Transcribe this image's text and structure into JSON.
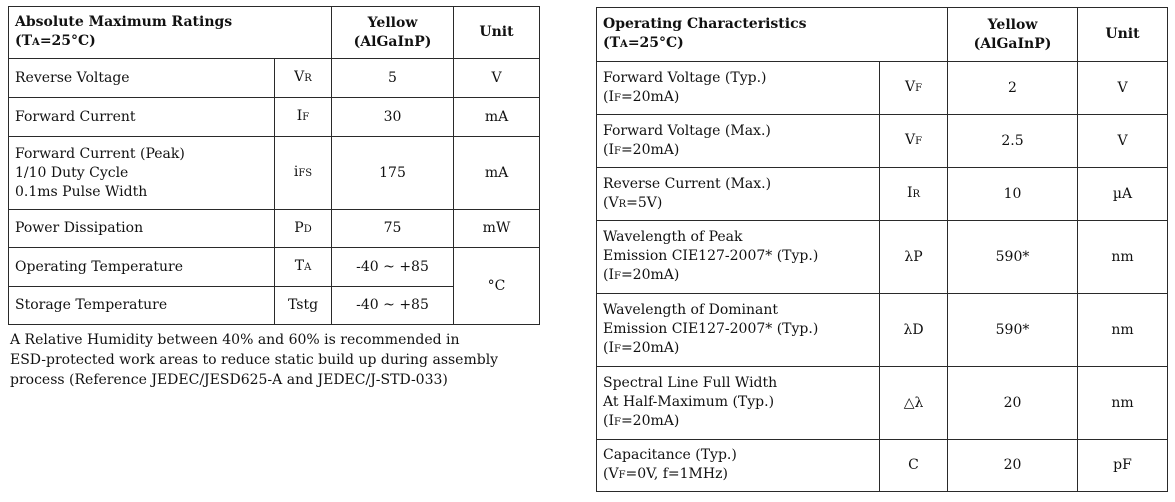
{
  "amr": {
    "title": "Absolute Maximum Ratings",
    "cond_prefix": "(T",
    "cond_sub": "A",
    "cond_suffix": "=25°C)",
    "col_color_1": "Yellow",
    "col_color_2": "(AlGaInP)",
    "col_unit": "Unit",
    "rows": [
      {
        "param": [
          "Reverse Voltage"
        ],
        "sym_main": "V",
        "sym_sub": "R",
        "value": "5",
        "unit": "V"
      },
      {
        "param": [
          "Forward Current"
        ],
        "sym_main": "I",
        "sym_sub": "F",
        "value": "30",
        "unit": "mA"
      },
      {
        "param": [
          "Forward Current (Peak)",
          "1/10 Duty Cycle",
          "0.1ms Pulse Width"
        ],
        "sym_main": "i",
        "sym_sub": "FS",
        "value": "175",
        "unit": "mA"
      },
      {
        "param": [
          "Power Dissipation"
        ],
        "sym_main": "P",
        "sym_sub": "D",
        "value": "75",
        "unit": "mW"
      },
      {
        "param": [
          "Operating Temperature"
        ],
        "sym_main": "T",
        "sym_sub": "A",
        "value": "-40 ~ +85",
        "unit": "°C"
      },
      {
        "param": [
          "Storage Temperature"
        ],
        "sym_main": "Tstg",
        "sym_sub": "",
        "value": "-40 ~ +85",
        "unit": ""
      }
    ]
  },
  "note": {
    "lines": [
      "A Relative Humidity between 40% and 60% is recommended in",
      "ESD-protected work areas to reduce static build up during assembly",
      "process (Reference JEDEC/JESD625-A and JEDEC/J-STD-033)"
    ]
  },
  "oc": {
    "title": "Operating Characteristics",
    "cond_prefix": "(T",
    "cond_sub": "A",
    "cond_suffix": "=25°C)",
    "col_color_1": "Yellow",
    "col_color_2": "(AlGaInP)",
    "col_unit": "Unit",
    "rows": [
      {
        "param": [
          "Forward Voltage (Typ.)"
        ],
        "cond_pre": "(I",
        "cond_sub": "F",
        "cond_post": "=20mA)",
        "sym_main": "V",
        "sym_sub": "F",
        "value": "2",
        "unit": "V"
      },
      {
        "param": [
          "Forward Voltage (Max.)"
        ],
        "cond_pre": "(I",
        "cond_sub": "F",
        "cond_post": "=20mA)",
        "sym_main": "V",
        "sym_sub": "F",
        "value": "2.5",
        "unit": "V"
      },
      {
        "param": [
          "Reverse Current (Max.)"
        ],
        "cond_pre": "(V",
        "cond_sub": "R",
        "cond_post": "=5V)",
        "sym_main": "I",
        "sym_sub": "R",
        "value": "10",
        "unit": "µA"
      },
      {
        "param": [
          "Wavelength of Peak",
          "Emission  CIE127-2007* (Typ.)"
        ],
        "cond_pre": "(I",
        "cond_sub": "F",
        "cond_post": "=20mA)",
        "sym_main": "λP",
        "sym_sub": "",
        "value": "590*",
        "unit": "nm"
      },
      {
        "param": [
          "Wavelength of Dominant",
          "Emission  CIE127-2007* (Typ.)"
        ],
        "cond_pre": "(I",
        "cond_sub": "F",
        "cond_post": "=20mA)",
        "sym_main": "λD",
        "sym_sub": "",
        "value": "590*",
        "unit": "nm"
      },
      {
        "param": [
          "Spectral Line Full Width",
          "At Half-Maximum (Typ.)"
        ],
        "cond_pre": "(I",
        "cond_sub": "F",
        "cond_post": "=20mA)",
        "sym_main": "△λ",
        "sym_sub": "",
        "value": "20",
        "unit": "nm"
      },
      {
        "param": [
          "Capacitance (Typ.)"
        ],
        "cond_pre": "(V",
        "cond_sub": "F",
        "cond_post": "=0V, f=1MHz)",
        "sym_main": "C",
        "sym_sub": "",
        "value": "20",
        "unit": "pF"
      }
    ]
  }
}
